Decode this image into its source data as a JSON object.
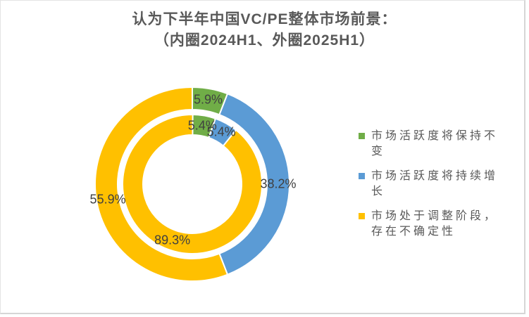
{
  "title": {
    "line1": "认为下半年中国VC/PE整体市场前景：",
    "line2": "（内圈2024H1、外圈2025H1）"
  },
  "chart_data": {
    "type": "pie",
    "subtype": "double-ring-doughnut",
    "title": "认为下半年中国VC/PE整体市场前景：（内圈2024H1、外圈2025H1）",
    "categories": [
      "市场活跃度将保持不变",
      "市场活跃度将持续增长",
      "市场处于调整阶段，存在不确定性"
    ],
    "colors": [
      "#70AD47",
      "#5B9BD5",
      "#FFC000"
    ],
    "series": [
      {
        "name": "2024H1",
        "ring": "inner",
        "values": [
          5.4,
          5.4,
          89.3
        ],
        "labels": [
          "5.4%",
          "5.4%",
          "89.3%"
        ]
      },
      {
        "name": "2025H1",
        "ring": "outer",
        "values": [
          5.9,
          38.2,
          55.9
        ],
        "labels": [
          "5.9%",
          "38.2%",
          "55.9%"
        ]
      }
    ],
    "start_angle": 0,
    "direction": "clockwise",
    "legend_position": "right",
    "label_color": "#404040",
    "title_color": "#595959"
  },
  "legend": {
    "items": [
      {
        "label": "市场活跃度将保持不变",
        "color": "#70AD47"
      },
      {
        "label": "市场活跃度将持续增长",
        "color": "#5B9BD5"
      },
      {
        "label": "市场处于调整阶段，存在不确定性",
        "color": "#FFC000"
      }
    ]
  }
}
